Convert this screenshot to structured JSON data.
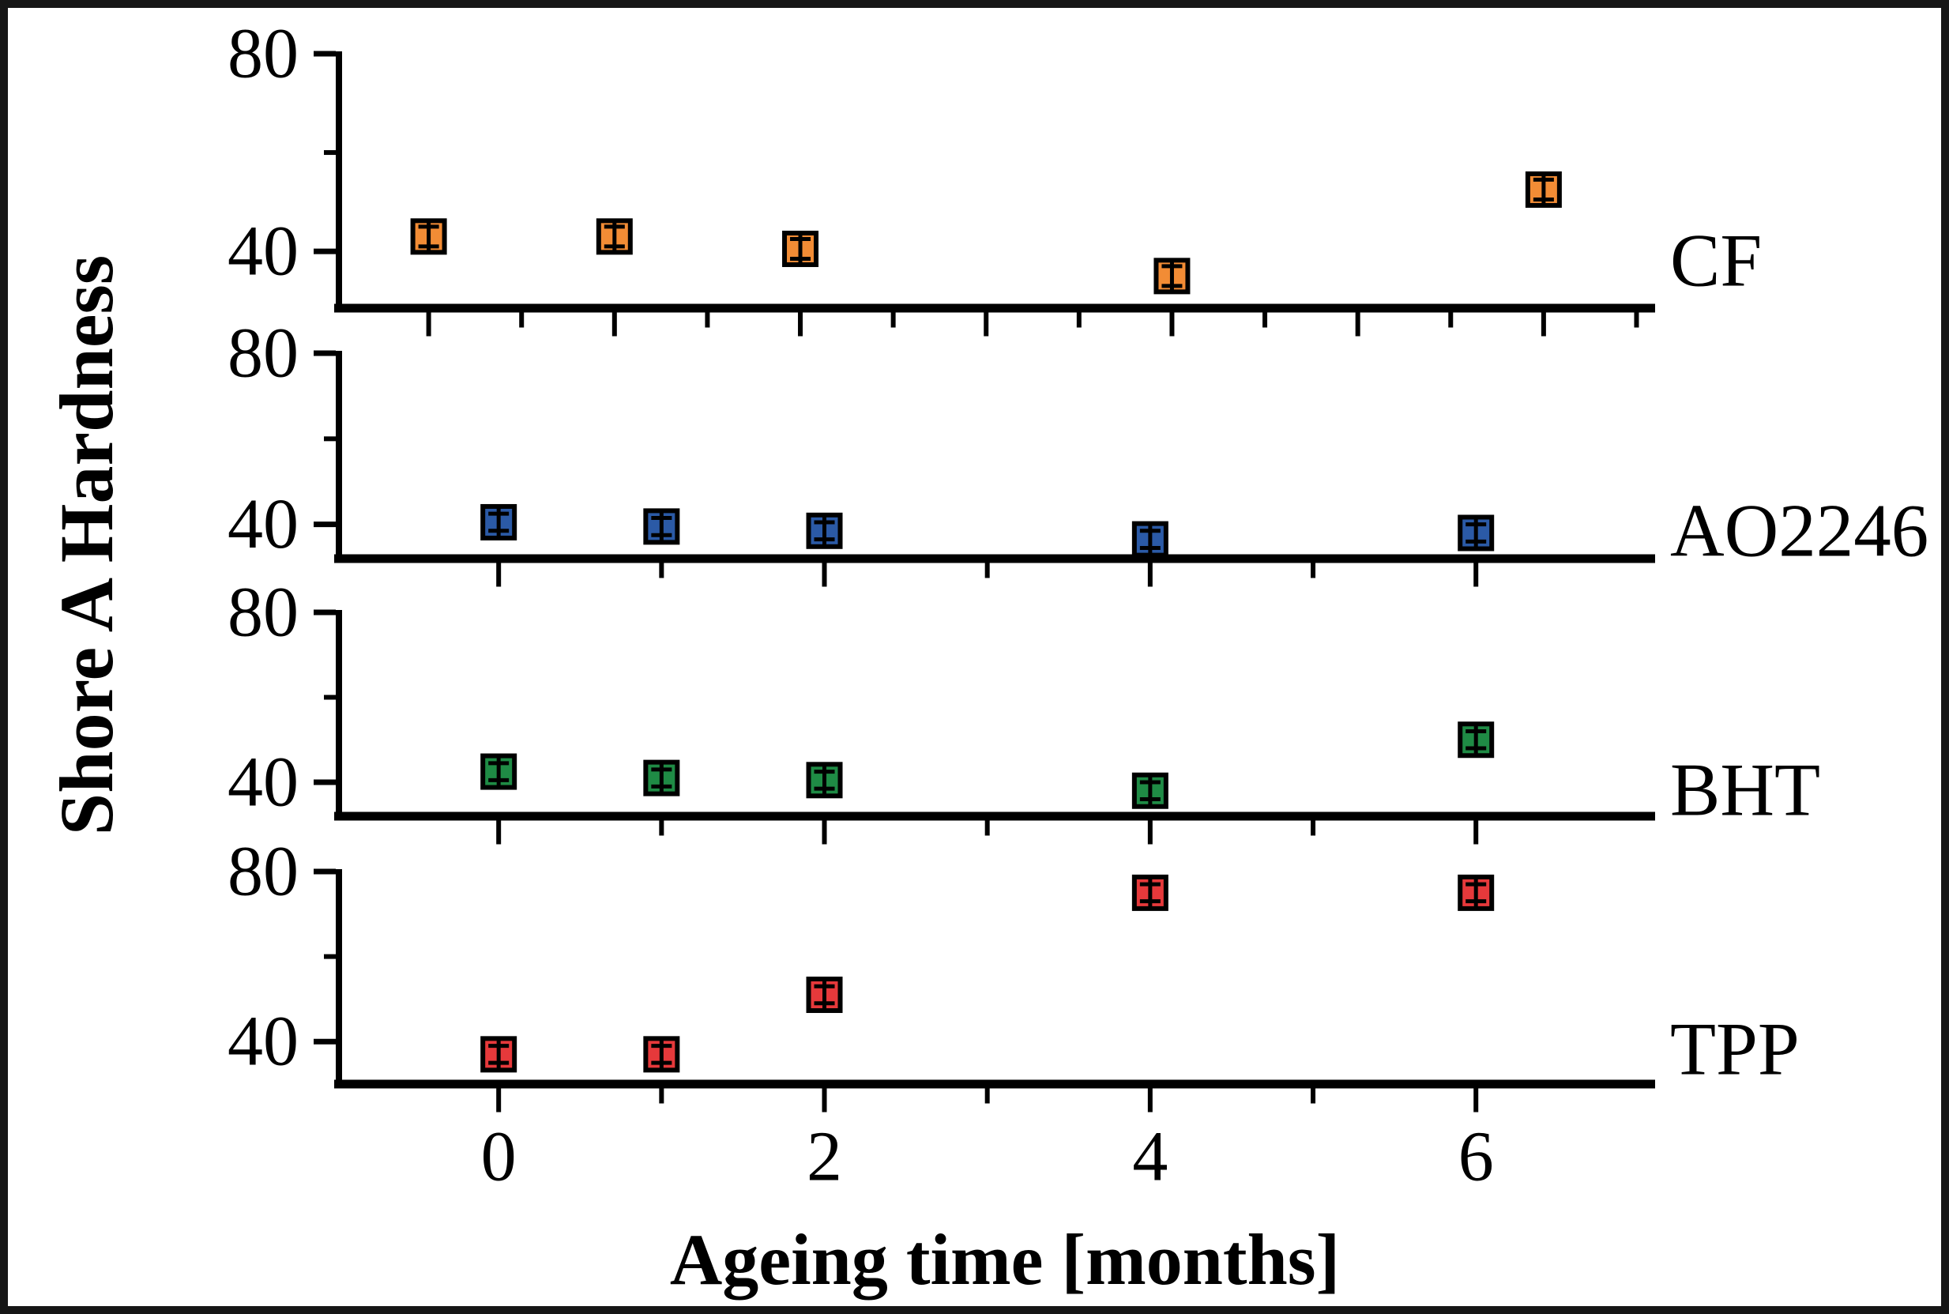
{
  "chart_data": {
    "type": "scatter",
    "title": "",
    "xlabel": "Ageing time [months]",
    "ylabel": "Shore A Hardness",
    "grid": false,
    "legend_position": "labels-right-of-each-panel",
    "x_months": [
      0,
      1,
      2,
      4,
      6
    ],
    "x_tick_labels": [
      "0",
      "2",
      "4",
      "6"
    ],
    "x_tick_label_values": [
      0,
      2,
      4,
      6
    ],
    "panels": [
      {
        "label": "CF",
        "marker": "square",
        "color": "#F28C35",
        "values": [
          43,
          43,
          40.5,
          35,
          52.5
        ],
        "errors": [
          2,
          2,
          2,
          2,
          2
        ],
        "x_range": [
          -0.5,
          6.6
        ],
        "y_range": [
          28.5,
          80
        ],
        "y_ticks_major": [
          80,
          40
        ],
        "y_ticks_minor": [
          60
        ],
        "x_tick_step": 0.5,
        "x_tick_min": 0,
        "x_tick_max": 6.5
      },
      {
        "label": "AO2246",
        "marker": "square",
        "color": "#2B5AA6",
        "values": [
          40.5,
          39.5,
          38.5,
          36.5,
          38
        ],
        "errors": [
          2,
          2,
          2,
          2,
          2
        ],
        "x_range": [
          -1,
          7.1
        ],
        "y_range": [
          32,
          80
        ],
        "y_ticks_major": [
          80,
          40
        ],
        "y_ticks_minor": [
          60
        ],
        "x_tick_step": 1,
        "x_tick_min": 0,
        "x_tick_max": 6
      },
      {
        "label": "BHT",
        "marker": "square",
        "color": "#1F8B45",
        "values": [
          42.5,
          41,
          40.5,
          38,
          50
        ],
        "errors": [
          2,
          2,
          2,
          2,
          2
        ],
        "x_range": [
          -1,
          7.1
        ],
        "y_range": [
          32,
          80
        ],
        "y_ticks_major": [
          80,
          40
        ],
        "y_ticks_minor": [
          60
        ],
        "x_tick_step": 1,
        "x_tick_min": 0,
        "x_tick_max": 6
      },
      {
        "label": "TPP",
        "marker": "square",
        "color": "#E6393B",
        "values": [
          37,
          37,
          51,
          75,
          75
        ],
        "errors": [
          2,
          2,
          2,
          2,
          2
        ],
        "x_range": [
          -1,
          7.1
        ],
        "y_range": [
          30,
          80
        ],
        "y_ticks_major": [
          80,
          40
        ],
        "y_ticks_minor": [
          60
        ],
        "x_tick_step": 1,
        "x_tick_min": 0,
        "x_tick_max": 6
      }
    ]
  }
}
